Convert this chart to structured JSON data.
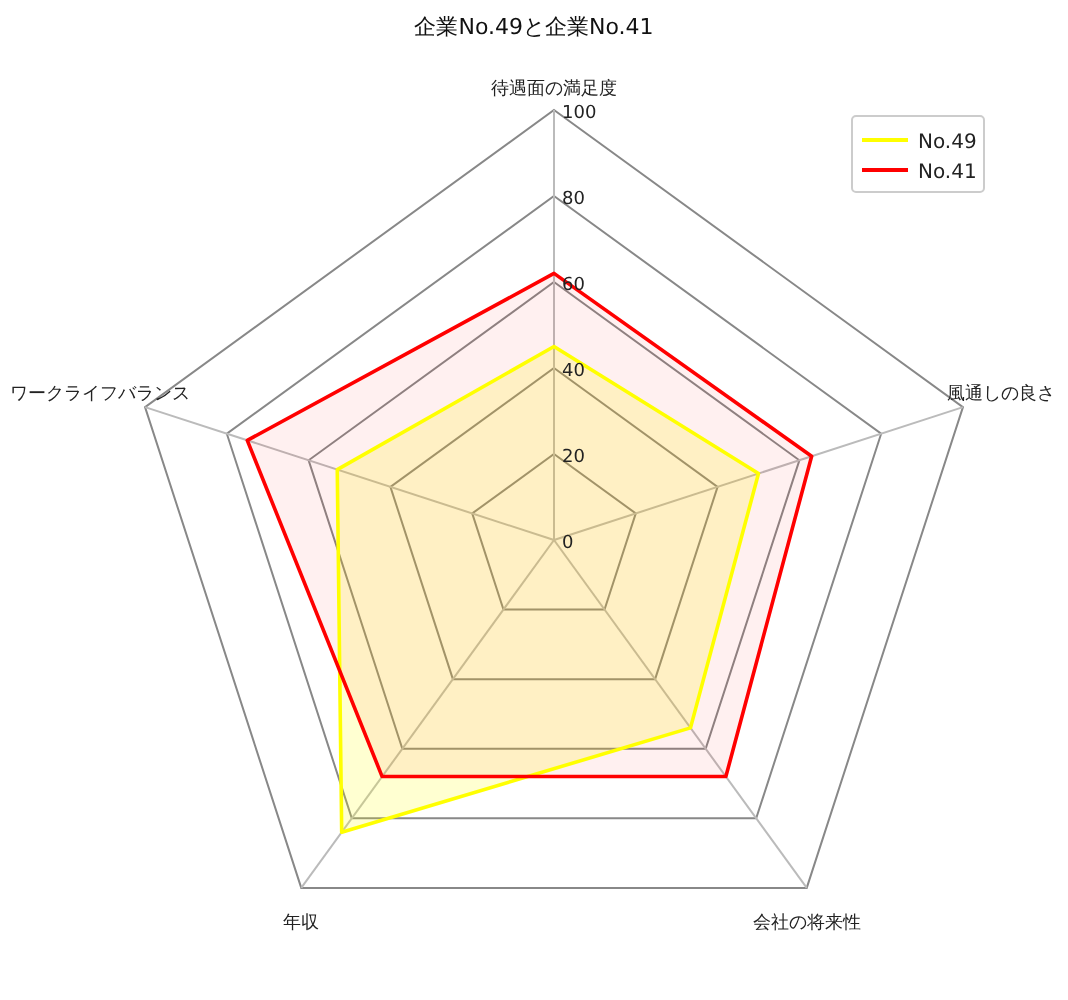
{
  "chart_data": {
    "type": "radar",
    "title": "企業No.49と企業No.41",
    "categories": [
      "待遇面の満足度",
      "風通しの良さ",
      "会社の将来性",
      "年収",
      "ワークライフバランス"
    ],
    "series": [
      {
        "name": "No.49",
        "color": "#ffff00",
        "values": [
          45,
          50,
          54,
          84,
          53
        ]
      },
      {
        "name": "No.41",
        "color": "#ff0000",
        "values": [
          62,
          63,
          68,
          68,
          75
        ]
      }
    ],
    "ylim": [
      0,
      100
    ],
    "yticks": [
      0,
      20,
      40,
      60,
      80,
      100
    ],
    "legend": "top right",
    "grid": true
  }
}
